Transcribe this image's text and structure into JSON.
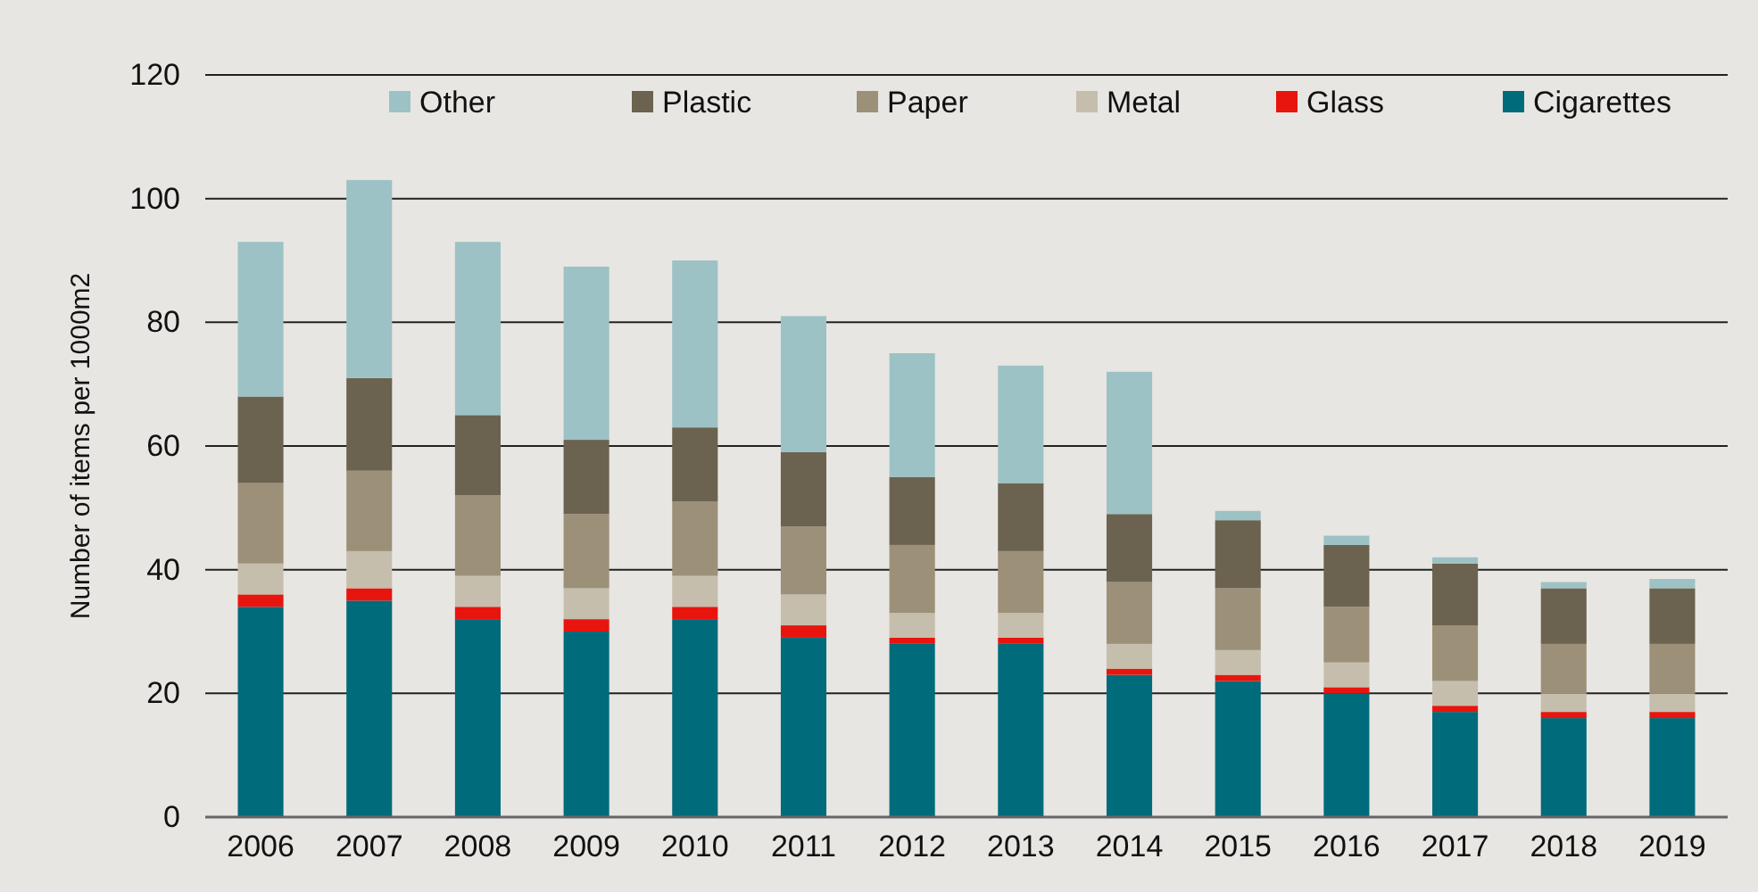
{
  "chart_data": {
    "type": "bar",
    "stacked": true,
    "ylabel": "Number of items per 1000m2",
    "categories": [
      "2006",
      "2007",
      "2008",
      "2009",
      "2010",
      "2011",
      "2012",
      "2013",
      "2014",
      "2015",
      "2016",
      "2017",
      "2018",
      "2019"
    ],
    "series": [
      {
        "name": "Cigarettes",
        "color": "#006b7a",
        "values": [
          34,
          35,
          32,
          30,
          32,
          29,
          28,
          28,
          23,
          22,
          20,
          17,
          16,
          16
        ]
      },
      {
        "name": "Glass",
        "color": "#e8150e",
        "values": [
          2,
          2,
          2,
          2,
          2,
          2,
          1,
          1,
          1,
          1,
          1,
          1,
          1,
          1
        ]
      },
      {
        "name": "Metal",
        "color": "#c6beac",
        "values": [
          5,
          6,
          5,
          5,
          5,
          5,
          4,
          4,
          4,
          4,
          4,
          4,
          3,
          3
        ]
      },
      {
        "name": "Paper",
        "color": "#9c9079",
        "values": [
          13,
          13,
          13,
          12,
          12,
          11,
          11,
          10,
          10,
          10,
          9,
          9,
          8,
          8
        ]
      },
      {
        "name": "Plastic",
        "color": "#6b634f",
        "values": [
          14,
          15,
          13,
          12,
          12,
          12,
          11,
          11,
          11,
          11,
          10,
          10,
          9,
          9
        ]
      },
      {
        "name": "Other",
        "color": "#9cc2c5",
        "values": [
          25,
          32,
          28,
          28,
          27,
          22,
          20,
          19,
          23,
          1.5,
          1.5,
          1,
          1,
          1.5
        ]
      }
    ],
    "ylim": [
      0,
      120
    ],
    "yticks": [
      0,
      20,
      40,
      60,
      80,
      100,
      120
    ],
    "grid": "y",
    "legend": "top"
  }
}
